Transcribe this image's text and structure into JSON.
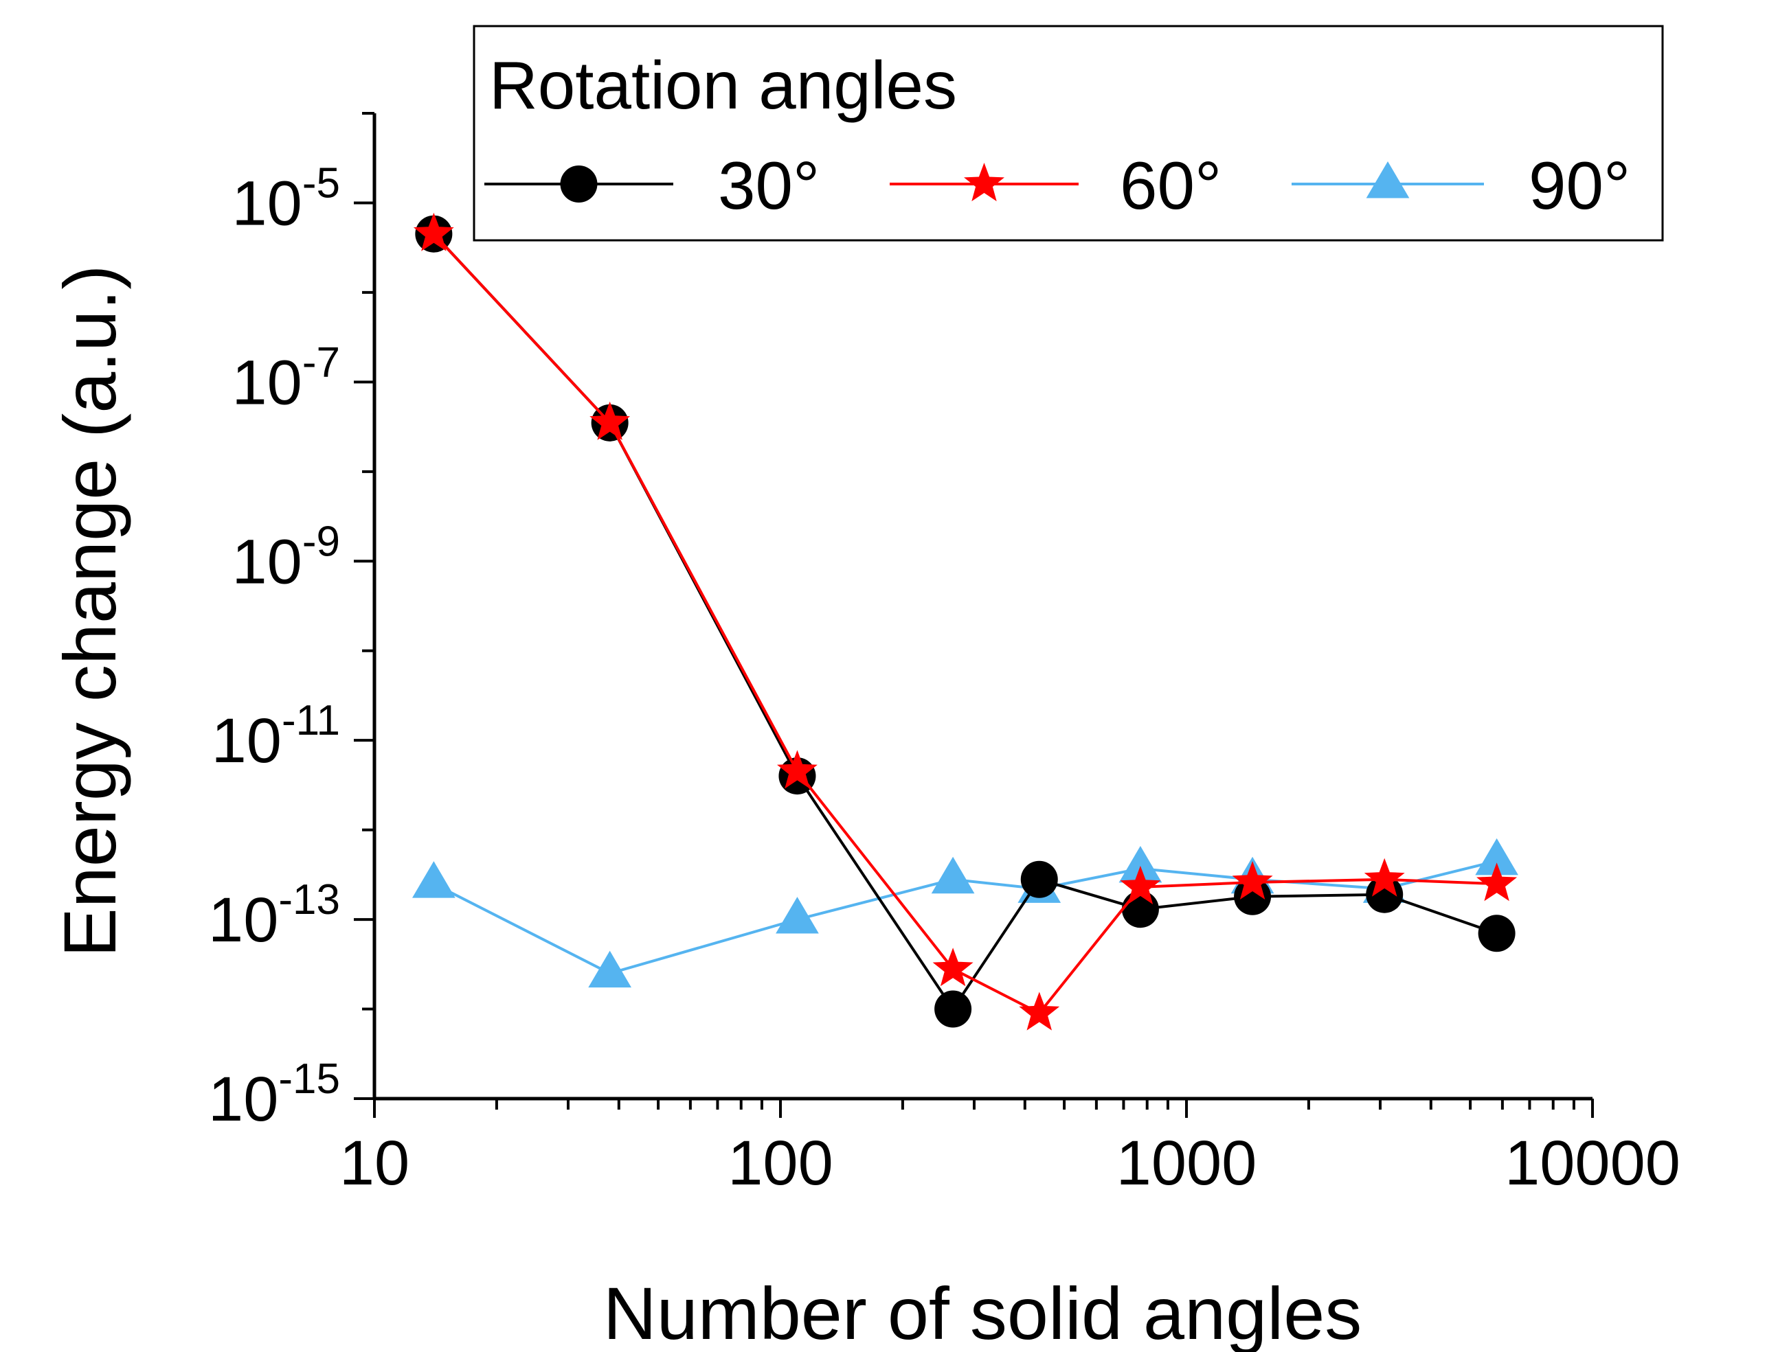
{
  "chart_data": {
    "type": "line",
    "xscale": "log",
    "yscale": "log",
    "xlabel": "Number of  solid angles",
    "ylabel": "Energy change (a.u.)",
    "xlim": [
      10,
      10000
    ],
    "ylim": [
      1e-15,
      0.0001
    ],
    "x_ticks": [
      {
        "value": 10,
        "label": "10"
      },
      {
        "value": 100,
        "label": "100"
      },
      {
        "value": 1000,
        "label": "1000"
      },
      {
        "value": 10000,
        "label": "10000"
      }
    ],
    "y_ticks": [
      {
        "value": 1e-05,
        "base": "10",
        "exp": "-5"
      },
      {
        "value": 1e-07,
        "base": "10",
        "exp": "-7"
      },
      {
        "value": 1e-09,
        "base": "10",
        "exp": "-9"
      },
      {
        "value": 1e-11,
        "base": "10",
        "exp": "-11"
      },
      {
        "value": 1e-13,
        "base": "10",
        "exp": "-13"
      },
      {
        "value": 1e-15,
        "base": "10",
        "exp": "-15"
      }
    ],
    "legend": {
      "title": "Rotation angles",
      "position": "top-right"
    },
    "series": [
      {
        "name": "30°",
        "color": "#000000",
        "marker": "circle",
        "x": [
          14,
          38,
          110,
          266,
          434,
          770,
          1454,
          3074,
          5810
        ],
        "y": [
          4.5e-06,
          3.5e-08,
          4e-12,
          1e-14,
          2.8e-13,
          1.3e-13,
          1.8e-13,
          1.9e-13,
          7e-14
        ]
      },
      {
        "name": "60°",
        "color": "#ff0000",
        "marker": "star",
        "x": [
          14,
          38,
          110,
          266,
          434,
          770,
          1454,
          3074,
          5810
        ],
        "y": [
          4.5e-06,
          3.5e-08,
          4.5e-12,
          2.8e-14,
          9e-15,
          2.3e-13,
          2.6e-13,
          2.8e-13,
          2.5e-13
        ]
      },
      {
        "name": "90°",
        "color": "#55b4f0",
        "marker": "triangle",
        "x": [
          14,
          38,
          110,
          266,
          434,
          770,
          1454,
          3074,
          5810
        ],
        "y": [
          2.5e-13,
          2.5e-14,
          1e-13,
          2.8e-13,
          2.2e-13,
          3.7e-13,
          2.8e-13,
          2.2e-13,
          4.5e-13
        ]
      }
    ]
  }
}
